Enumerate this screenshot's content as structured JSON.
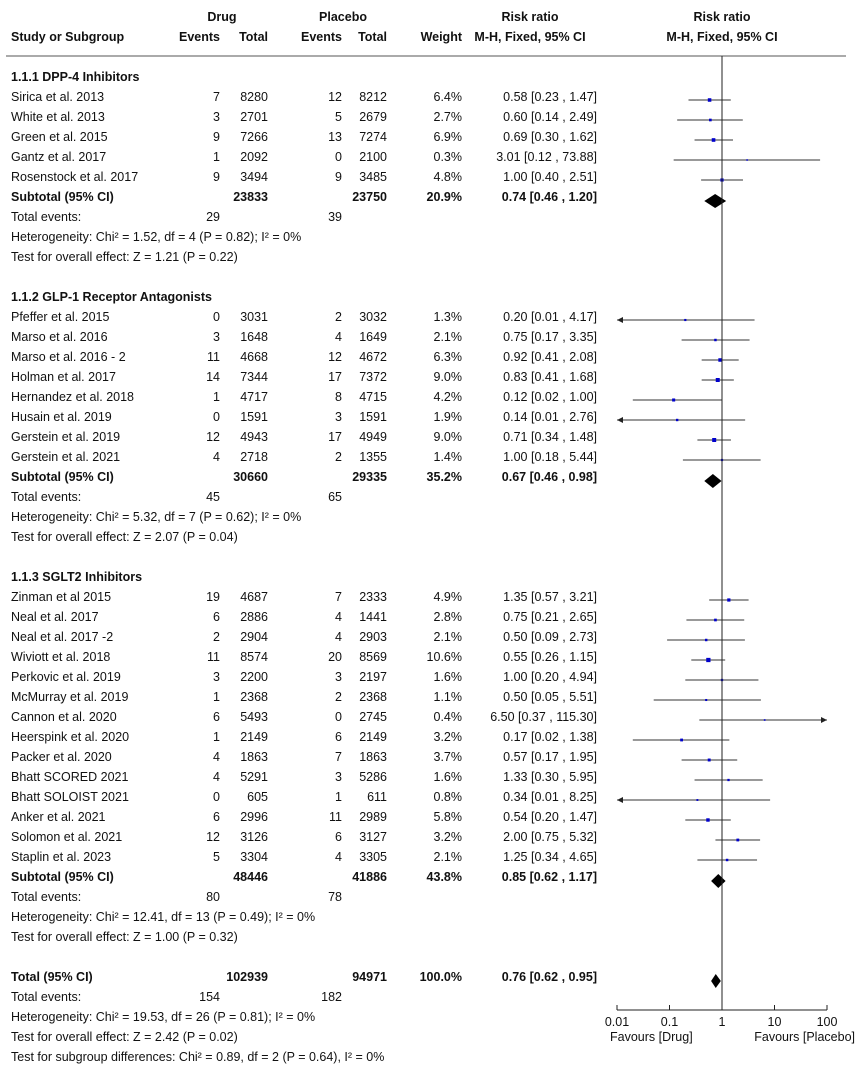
{
  "header": {
    "group1": "Drug",
    "group2": "Placebo",
    "rr_top": "Risk ratio",
    "plot_top": "Risk ratio",
    "study_col": "Study or Subgroup",
    "events1": "Events",
    "total1": "Total",
    "events2": "Events",
    "total2": "Total",
    "weight": "Weight",
    "rr_method": "M-H, Fixed, 95% CI",
    "plot_method": "M-H, Fixed, 95% CI"
  },
  "rows": [
    {
      "type": "heading",
      "label": "1.1.1 DPP-4 Inhibitors"
    },
    {
      "type": "study",
      "label": "Sirica et al. 2013",
      "e1": "7",
      "n1": "8280",
      "e2": "12",
      "n2": "8212",
      "w": "6.4%",
      "ci": "0.58 [0.23 , 1.47]",
      "rr": 0.58,
      "lo": 0.23,
      "hi": 1.47,
      "wt": 6.4
    },
    {
      "type": "study",
      "label": "White et al. 2013",
      "e1": "3",
      "n1": "2701",
      "e2": "5",
      "n2": "2679",
      "w": "2.7%",
      "ci": "0.60 [0.14 , 2.49]",
      "rr": 0.6,
      "lo": 0.14,
      "hi": 2.49,
      "wt": 2.7
    },
    {
      "type": "study",
      "label": "Green et al. 2015",
      "e1": "9",
      "n1": "7266",
      "e2": "13",
      "n2": "7274",
      "w": "6.9%",
      "ci": "0.69 [0.30 , 1.62]",
      "rr": 0.69,
      "lo": 0.3,
      "hi": 1.62,
      "wt": 6.9
    },
    {
      "type": "study",
      "label": "Gantz et al. 2017",
      "e1": "1",
      "n1": "2092",
      "e2": "0",
      "n2": "2100",
      "w": "0.3%",
      "ci": "3.01 [0.12 , 73.88]",
      "rr": 3.01,
      "lo": 0.12,
      "hi": 73.88,
      "wt": 0.3
    },
    {
      "type": "study",
      "label": "Rosenstock et al. 2017",
      "e1": "9",
      "n1": "3494",
      "e2": "9",
      "n2": "3485",
      "w": "4.8%",
      "ci": "1.00 [0.40 , 2.51]",
      "rr": 1.0,
      "lo": 0.4,
      "hi": 2.51,
      "wt": 4.8
    },
    {
      "type": "subtotal",
      "label": "Subtotal (95% CI)",
      "n1": "23833",
      "n2": "23750",
      "w": "20.9%",
      "ci": "0.74 [0.46 , 1.20]",
      "rr": 0.74,
      "lo": 0.46,
      "hi": 1.2
    },
    {
      "type": "text",
      "label": "Total events:",
      "e1": "29",
      "e2": "39"
    },
    {
      "type": "text",
      "label": "Heterogeneity: Chi² = 1.52, df = 4 (P = 0.82); I² = 0%"
    },
    {
      "type": "text",
      "label": "Test for overall effect: Z = 1.21 (P = 0.22)"
    },
    {
      "type": "blank"
    },
    {
      "type": "heading",
      "label": "1.1.2 GLP-1 Receptor Antagonists"
    },
    {
      "type": "study",
      "label": "Pfeffer et al. 2015",
      "e1": "0",
      "n1": "3031",
      "e2": "2",
      "n2": "3032",
      "w": "1.3%",
      "ci": "0.20 [0.01 , 4.17]",
      "rr": 0.2,
      "lo": 0.01,
      "hi": 4.17,
      "wt": 1.3
    },
    {
      "type": "study",
      "label": "Marso et al. 2016",
      "e1": "3",
      "n1": "1648",
      "e2": "4",
      "n2": "1649",
      "w": "2.1%",
      "ci": "0.75 [0.17 , 3.35]",
      "rr": 0.75,
      "lo": 0.17,
      "hi": 3.35,
      "wt": 2.1
    },
    {
      "type": "study",
      "label": "Marso et al. 2016 - 2",
      "e1": "11",
      "n1": "4668",
      "e2": "12",
      "n2": "4672",
      "w": "6.3%",
      "ci": "0.92 [0.41 , 2.08]",
      "rr": 0.92,
      "lo": 0.41,
      "hi": 2.08,
      "wt": 6.3
    },
    {
      "type": "study",
      "label": "Holman et al. 2017",
      "e1": "14",
      "n1": "7344",
      "e2": "17",
      "n2": "7372",
      "w": "9.0%",
      "ci": "0.83 [0.41 , 1.68]",
      "rr": 0.83,
      "lo": 0.41,
      "hi": 1.68,
      "wt": 9.0
    },
    {
      "type": "study",
      "label": "Hernandez et al. 2018",
      "e1": "1",
      "n1": "4717",
      "e2": "8",
      "n2": "4715",
      "w": "4.2%",
      "ci": "0.12 [0.02 , 1.00]",
      "rr": 0.12,
      "lo": 0.02,
      "hi": 1.0,
      "wt": 4.2
    },
    {
      "type": "study",
      "label": "Husain et al. 2019",
      "e1": "0",
      "n1": "1591",
      "e2": "3",
      "n2": "1591",
      "w": "1.9%",
      "ci": "0.14 [0.01 , 2.76]",
      "rr": 0.14,
      "lo": 0.01,
      "hi": 2.76,
      "wt": 1.9
    },
    {
      "type": "study",
      "label": "Gerstein et al. 2019",
      "e1": "12",
      "n1": "4943",
      "e2": "17",
      "n2": "4949",
      "w": "9.0%",
      "ci": "0.71 [0.34 , 1.48]",
      "rr": 0.71,
      "lo": 0.34,
      "hi": 1.48,
      "wt": 9.0
    },
    {
      "type": "study",
      "label": "Gerstein et al. 2021",
      "e1": "4",
      "n1": "2718",
      "e2": "2",
      "n2": "1355",
      "w": "1.4%",
      "ci": "1.00 [0.18 , 5.44]",
      "rr": 1.0,
      "lo": 0.18,
      "hi": 5.44,
      "wt": 1.4
    },
    {
      "type": "subtotal",
      "label": "Subtotal (95% CI)",
      "n1": "30660",
      "n2": "29335",
      "w": "35.2%",
      "ci": "0.67 [0.46 , 0.98]",
      "rr": 0.67,
      "lo": 0.46,
      "hi": 0.98
    },
    {
      "type": "text",
      "label": "Total events:",
      "e1": "45",
      "e2": "65"
    },
    {
      "type": "text",
      "label": "Heterogeneity: Chi² = 5.32, df = 7 (P = 0.62); I² = 0%"
    },
    {
      "type": "text",
      "label": "Test for overall effect: Z = 2.07 (P = 0.04)"
    },
    {
      "type": "blank"
    },
    {
      "type": "heading",
      "label": "1.1.3 SGLT2 Inhibitors"
    },
    {
      "type": "study",
      "label": "Zinman et al 2015",
      "e1": "19",
      "n1": "4687",
      "e2": "7",
      "n2": "2333",
      "w": "4.9%",
      "ci": "1.35 [0.57 , 3.21]",
      "rr": 1.35,
      "lo": 0.57,
      "hi": 3.21,
      "wt": 4.9
    },
    {
      "type": "study",
      "label": "Neal et al. 2017",
      "e1": "6",
      "n1": "2886",
      "e2": "4",
      "n2": "1441",
      "w": "2.8%",
      "ci": "0.75 [0.21 , 2.65]",
      "rr": 0.75,
      "lo": 0.21,
      "hi": 2.65,
      "wt": 2.8
    },
    {
      "type": "study",
      "label": "Neal et al. 2017 -2",
      "e1": "2",
      "n1": "2904",
      "e2": "4",
      "n2": "2903",
      "w": "2.1%",
      "ci": "0.50 [0.09 , 2.73]",
      "rr": 0.5,
      "lo": 0.09,
      "hi": 2.73,
      "wt": 2.1
    },
    {
      "type": "study",
      "label": "Wiviott et al. 2018",
      "e1": "11",
      "n1": "8574",
      "e2": "20",
      "n2": "8569",
      "w": "10.6%",
      "ci": "0.55 [0.26 , 1.15]",
      "rr": 0.55,
      "lo": 0.26,
      "hi": 1.15,
      "wt": 10.6
    },
    {
      "type": "study",
      "label": "Perkovic et al. 2019",
      "e1": "3",
      "n1": "2200",
      "e2": "3",
      "n2": "2197",
      "w": "1.6%",
      "ci": "1.00 [0.20 , 4.94]",
      "rr": 1.0,
      "lo": 0.2,
      "hi": 4.94,
      "wt": 1.6
    },
    {
      "type": "study",
      "label": "McMurray et al. 2019",
      "e1": "1",
      "n1": "2368",
      "e2": "2",
      "n2": "2368",
      "w": "1.1%",
      "ci": "0.50 [0.05 , 5.51]",
      "rr": 0.5,
      "lo": 0.05,
      "hi": 5.51,
      "wt": 1.1
    },
    {
      "type": "study",
      "label": "Cannon et al. 2020",
      "e1": "6",
      "n1": "5493",
      "e2": "0",
      "n2": "2745",
      "w": "0.4%",
      "ci": "6.50 [0.37 , 115.30]",
      "rr": 6.5,
      "lo": 0.37,
      "hi": 115.3,
      "wt": 0.4
    },
    {
      "type": "study",
      "label": "Heerspink et al. 2020",
      "e1": "1",
      "n1": "2149",
      "e2": "6",
      "n2": "2149",
      "w": "3.2%",
      "ci": "0.17 [0.02 , 1.38]",
      "rr": 0.17,
      "lo": 0.02,
      "hi": 1.38,
      "wt": 3.2
    },
    {
      "type": "study",
      "label": "Packer et al. 2020",
      "e1": "4",
      "n1": "1863",
      "e2": "7",
      "n2": "1863",
      "w": "3.7%",
      "ci": "0.57 [0.17 , 1.95]",
      "rr": 0.57,
      "lo": 0.17,
      "hi": 1.95,
      "wt": 3.7
    },
    {
      "type": "study",
      "label": "Bhatt SCORED 2021",
      "e1": "4",
      "n1": "5291",
      "e2": "3",
      "n2": "5286",
      "w": "1.6%",
      "ci": "1.33 [0.30 , 5.95]",
      "rr": 1.33,
      "lo": 0.3,
      "hi": 5.95,
      "wt": 1.6
    },
    {
      "type": "study",
      "label": "Bhatt SOLOIST 2021",
      "e1": "0",
      "n1": "605",
      "e2": "1",
      "n2": "611",
      "w": "0.8%",
      "ci": "0.34 [0.01 , 8.25]",
      "rr": 0.34,
      "lo": 0.01,
      "hi": 8.25,
      "wt": 0.8
    },
    {
      "type": "study",
      "label": "Anker et al. 2021",
      "e1": "6",
      "n1": "2996",
      "e2": "11",
      "n2": "2989",
      "w": "5.8%",
      "ci": "0.54 [0.20 , 1.47]",
      "rr": 0.54,
      "lo": 0.2,
      "hi": 1.47,
      "wt": 5.8
    },
    {
      "type": "study",
      "label": "Solomon et al. 2021",
      "e1": "12",
      "n1": "3126",
      "e2": "6",
      "n2": "3127",
      "w": "3.2%",
      "ci": "2.00 [0.75 , 5.32]",
      "rr": 2.0,
      "lo": 0.75,
      "hi": 5.32,
      "wt": 3.2
    },
    {
      "type": "study",
      "label": "Staplin et al. 2023",
      "e1": "5",
      "n1": "3304",
      "e2": "4",
      "n2": "3305",
      "w": "2.1%",
      "ci": "1.25 [0.34 , 4.65]",
      "rr": 1.25,
      "lo": 0.34,
      "hi": 4.65,
      "wt": 2.1
    },
    {
      "type": "subtotal",
      "label": "Subtotal (95% CI)",
      "n1": "48446",
      "n2": "41886",
      "w": "43.8%",
      "ci": "0.85 [0.62 , 1.17]",
      "rr": 0.85,
      "lo": 0.62,
      "hi": 1.17
    },
    {
      "type": "text",
      "label": "Total events:",
      "e1": "80",
      "e2": "78"
    },
    {
      "type": "text",
      "label": "Heterogeneity: Chi² = 12.41, df = 13 (P = 0.49); I² = 0%"
    },
    {
      "type": "text",
      "label": "Test for overall effect: Z = 1.00 (P = 0.32)"
    },
    {
      "type": "blank"
    },
    {
      "type": "subtotal",
      "label": "Total (95% CI)",
      "n1": "102939",
      "n2": "94971",
      "w": "100.0%",
      "ci": "0.76 [0.62 , 0.95]",
      "rr": 0.76,
      "lo": 0.62,
      "hi": 0.95
    },
    {
      "type": "text",
      "label": "Total events:",
      "e1": "154",
      "e2": "182"
    },
    {
      "type": "text",
      "label": "Heterogeneity: Chi² = 19.53, df = 26 (P = 0.81); I² = 0%"
    },
    {
      "type": "text",
      "label": "Test for overall effect: Z = 2.42 (P = 0.02)"
    },
    {
      "type": "text",
      "label": "Test for subgroup differences: Chi² = 0.89, df = 2 (P = 0.64), I² = 0%"
    }
  ],
  "chart_data": {
    "type": "forest",
    "scale": "log",
    "xlim": [
      0.01,
      100
    ],
    "reference_line": 1,
    "ticks": [
      0.01,
      0.1,
      1,
      10,
      100
    ],
    "tick_labels": [
      "0.01",
      "0.1",
      "1",
      "10",
      "100"
    ],
    "favours_left": "Favours [Drug]",
    "favours_right": "Favours [Placebo]",
    "marker_color": "#0000cc",
    "line_color": "#333333"
  }
}
